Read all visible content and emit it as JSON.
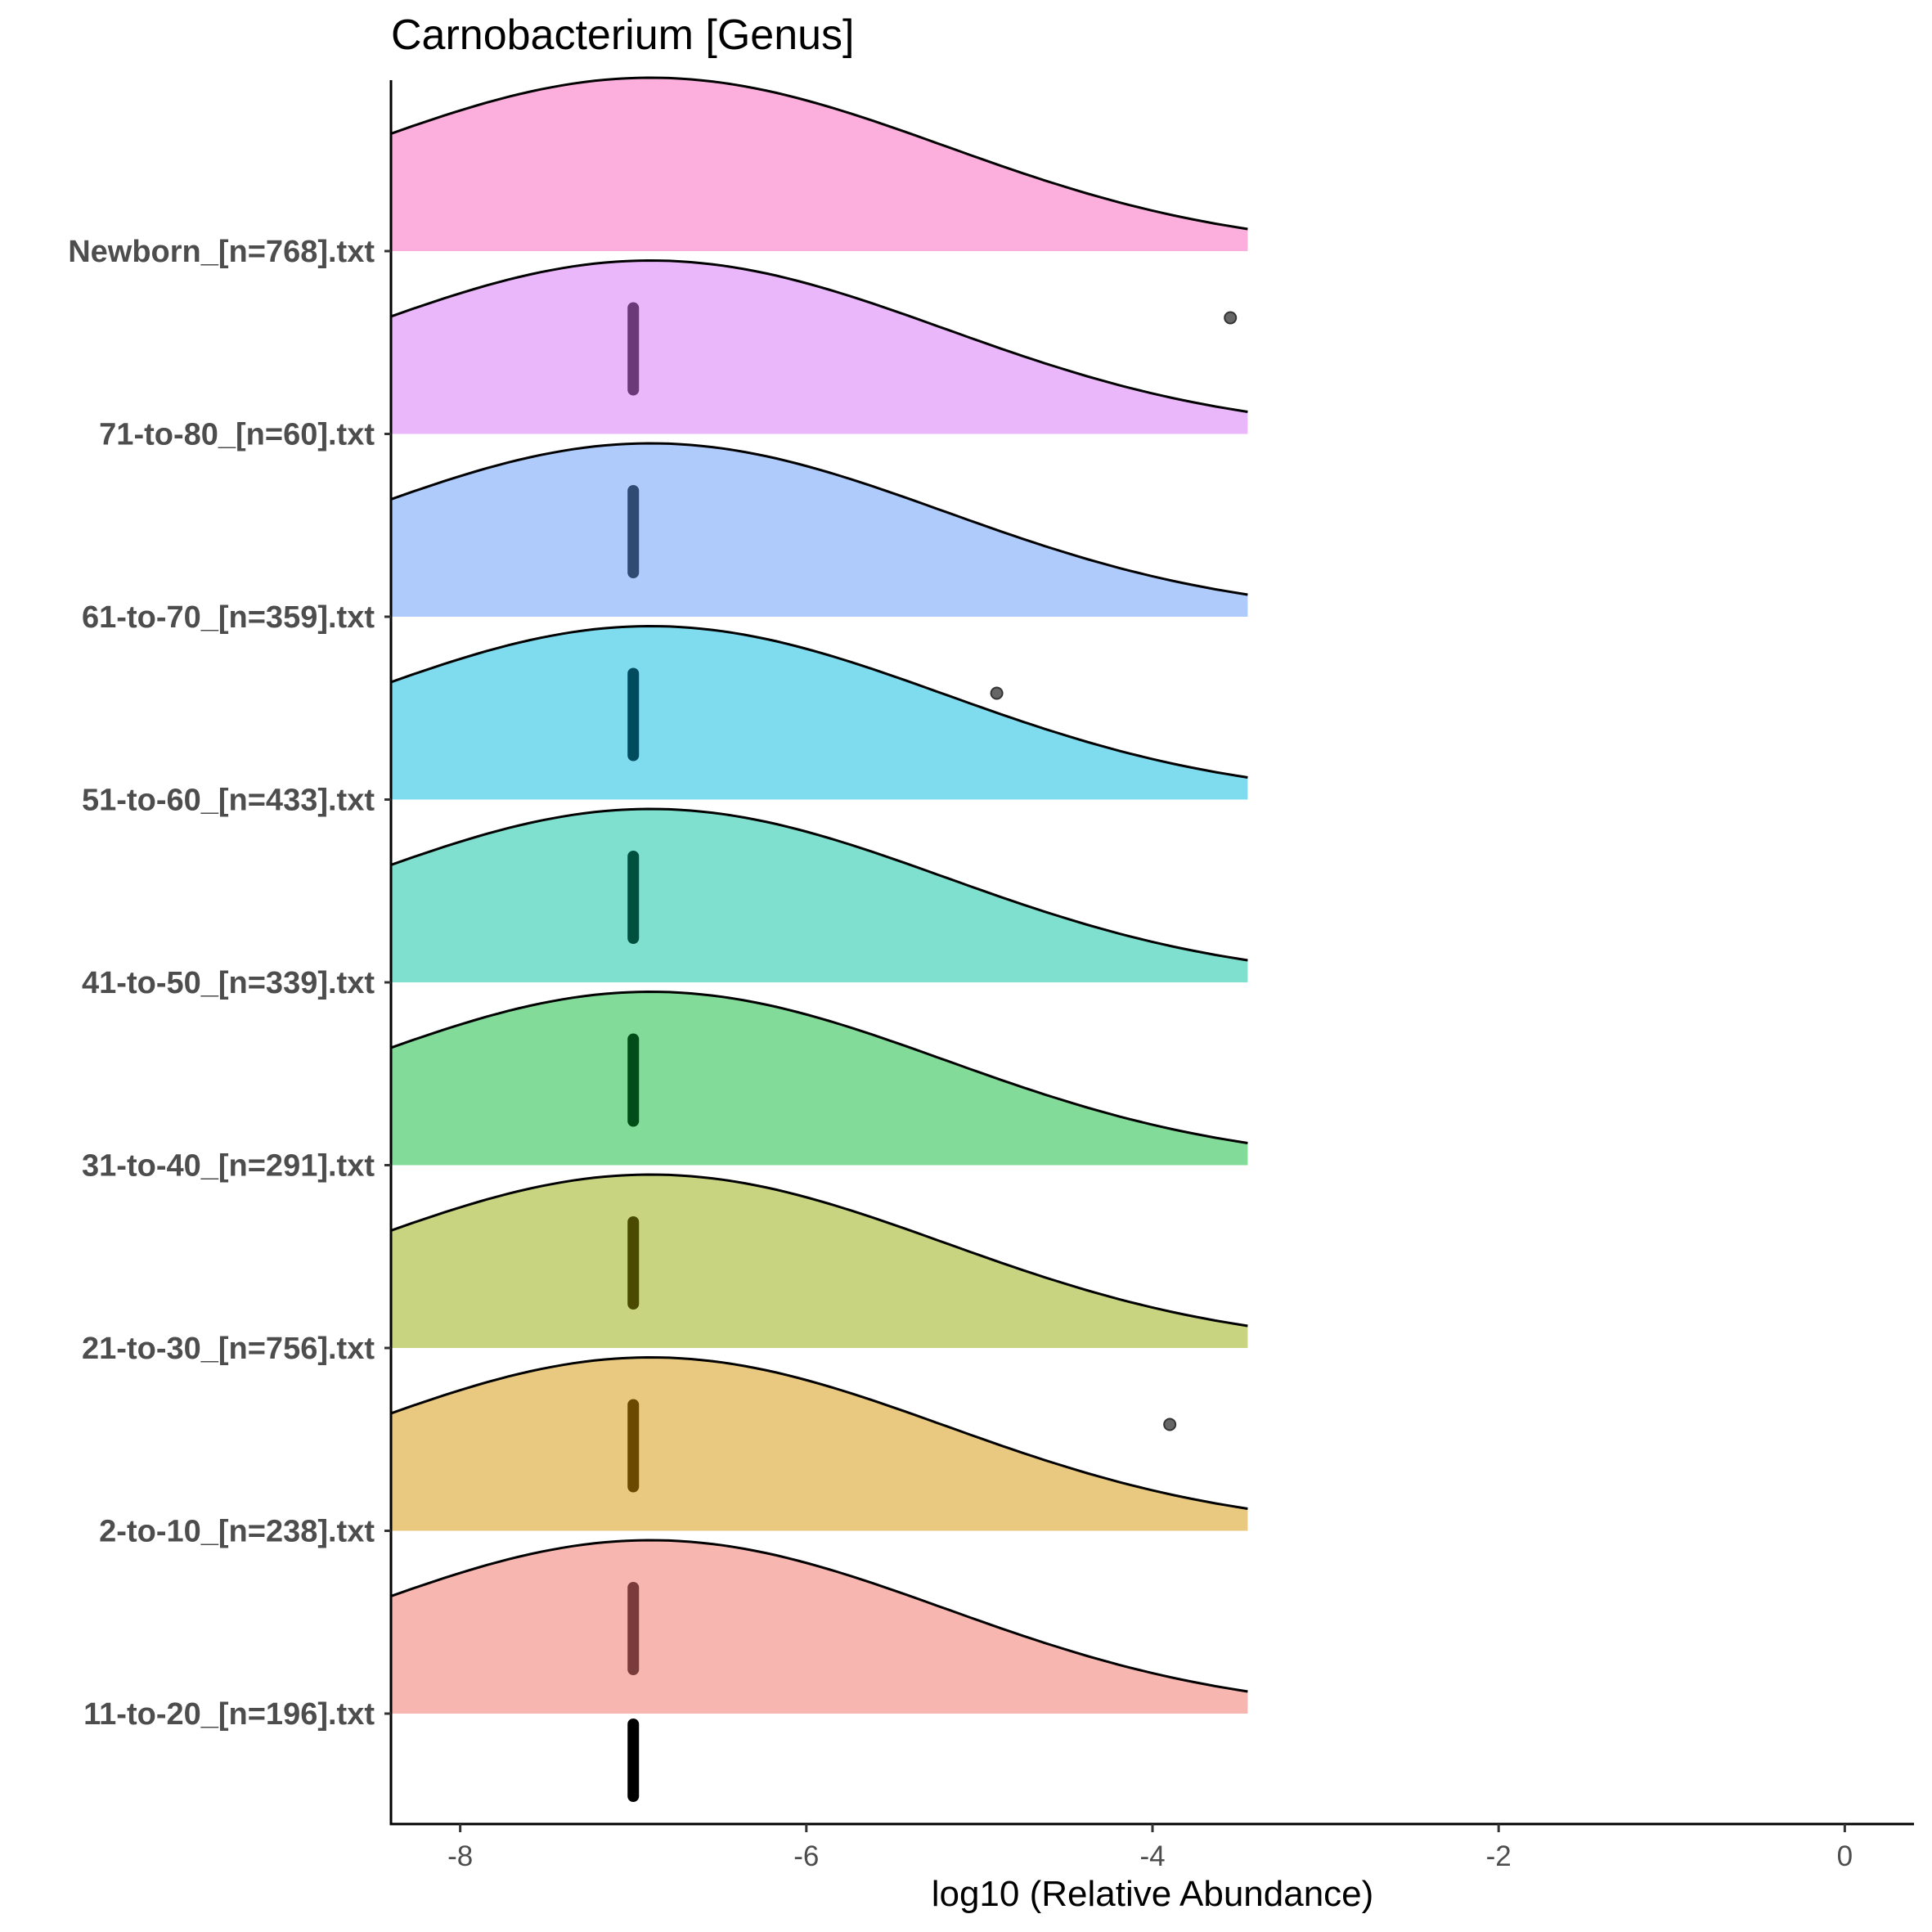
{
  "chart_data": {
    "type": "ridgeline",
    "title": "Carnobacterium [Genus]",
    "xlabel": "log10 (Relative Abundance)",
    "ylabel": "",
    "xlim": [
      -8.4,
      0.4
    ],
    "xticks": [
      -8,
      -6,
      -4,
      -2,
      0
    ],
    "xtick_labels": [
      "-8",
      "-6",
      "-4",
      "-2",
      "0"
    ],
    "density_range": [
      -8.4,
      -3.45
    ],
    "series": [
      {
        "name": "11-to-20_[n=196].txt",
        "color": "#F8B6B1",
        "peak": -6.9,
        "sd": 1.7,
        "points": [
          -7.0
        ],
        "outliers": [],
        "line_color": "#7a3c3a"
      },
      {
        "name": "2-to-10_[n=238].txt",
        "color": "#E8C97F",
        "peak": -6.9,
        "sd": 1.7,
        "points": [
          -7.0
        ],
        "outliers": [
          -3.9
        ],
        "line_color": "#6b4a00"
      },
      {
        "name": "21-to-30_[n=756].txt",
        "color": "#C8D480",
        "peak": -6.9,
        "sd": 1.7,
        "points": [
          -7.0
        ],
        "outliers": [],
        "line_color": "#4a4a00"
      },
      {
        "name": "31-to-40_[n=291].txt",
        "color": "#82DB98",
        "peak": -6.9,
        "sd": 1.7,
        "points": [
          -7.0
        ],
        "outliers": [],
        "line_color": "#004d1a"
      },
      {
        "name": "41-to-50_[n=339].txt",
        "color": "#7FE0CF",
        "peak": -6.9,
        "sd": 1.7,
        "points": [
          -7.0
        ],
        "outliers": [],
        "line_color": "#00503f"
      },
      {
        "name": "51-to-60_[n=433].txt",
        "color": "#7FDBEE",
        "peak": -6.9,
        "sd": 1.7,
        "points": [
          -7.0
        ],
        "outliers": [
          -4.9
        ],
        "line_color": "#004c5e"
      },
      {
        "name": "61-to-70_[n=359].txt",
        "color": "#AECBFC",
        "peak": -6.9,
        "sd": 1.7,
        "points": [
          -7.0
        ],
        "outliers": [],
        "line_color": "#2f4a73"
      },
      {
        "name": "71-to-80_[n=60].txt",
        "color": "#EBB7FB",
        "peak": -6.9,
        "sd": 1.7,
        "points": [
          -7.0
        ],
        "outliers": [
          -3.55
        ],
        "line_color": "#6a3a78"
      },
      {
        "name": "Newborn_[n=768].txt",
        "color": "#FCAFDD",
        "peak": -6.9,
        "sd": 1.7,
        "points": [],
        "outliers": [],
        "line_color": "#000000"
      }
    ],
    "bottom_strip": {
      "points": [
        -7.0
      ],
      "color": "#000000"
    }
  }
}
